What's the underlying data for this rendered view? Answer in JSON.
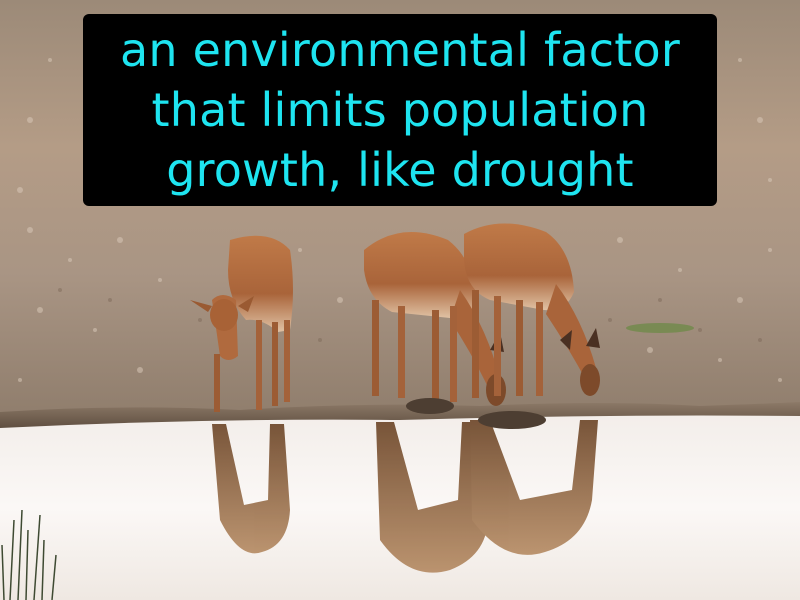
{
  "caption": {
    "text": "an environmental factor that limits population growth, like drought",
    "text_color": "#1ee4f0",
    "background_color": "#000000"
  },
  "photo": {
    "subject": "impala",
    "count": 3
  }
}
